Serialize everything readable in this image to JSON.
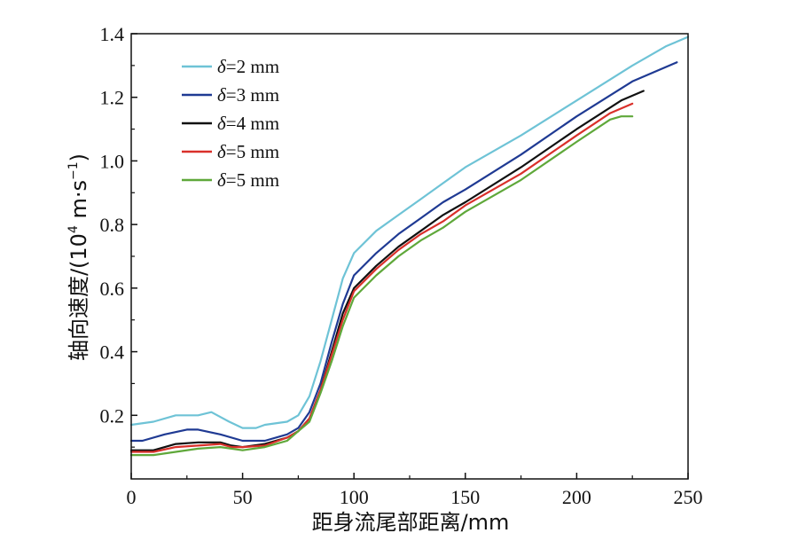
{
  "chart_data": {
    "type": "line",
    "xlabel": "距身流尾部距离/mm",
    "ylabel_main": "轴向速度/(10",
    "ylabel_exp1": "4",
    "ylabel_mid": " m·s",
    "ylabel_exp2": "−1",
    "ylabel_end": ")",
    "xlim": [
      0,
      250
    ],
    "ylim": [
      0,
      1.4
    ],
    "xticks": [
      "0",
      "50",
      "100",
      "150",
      "200",
      "250"
    ],
    "yticks": [
      "0.2",
      "0.4",
      "0.6",
      "0.8",
      "1.0",
      "1.2",
      "1.4"
    ],
    "legend_position": "top-left",
    "series": [
      {
        "name": "δ=2 mm",
        "symbol": "δ",
        "rest": "=2 mm",
        "color": "#6ec3d6",
        "points": [
          [
            0,
            0.17
          ],
          [
            10,
            0.18
          ],
          [
            20,
            0.2
          ],
          [
            30,
            0.2
          ],
          [
            36,
            0.21
          ],
          [
            44,
            0.18
          ],
          [
            50,
            0.16
          ],
          [
            56,
            0.16
          ],
          [
            60,
            0.17
          ],
          [
            70,
            0.18
          ],
          [
            75,
            0.2
          ],
          [
            80,
            0.26
          ],
          [
            85,
            0.37
          ],
          [
            90,
            0.5
          ],
          [
            95,
            0.63
          ],
          [
            100,
            0.71
          ],
          [
            110,
            0.78
          ],
          [
            120,
            0.83
          ],
          [
            130,
            0.88
          ],
          [
            140,
            0.93
          ],
          [
            150,
            0.98
          ],
          [
            175,
            1.08
          ],
          [
            200,
            1.19
          ],
          [
            225,
            1.3
          ],
          [
            240,
            1.36
          ],
          [
            250,
            1.39
          ]
        ]
      },
      {
        "name": "δ=3 mm",
        "symbol": "δ",
        "rest": "=3 mm",
        "color": "#1f3a93",
        "points": [
          [
            0,
            0.12
          ],
          [
            5,
            0.12
          ],
          [
            15,
            0.14
          ],
          [
            25,
            0.155
          ],
          [
            30,
            0.155
          ],
          [
            40,
            0.14
          ],
          [
            50,
            0.12
          ],
          [
            60,
            0.12
          ],
          [
            70,
            0.14
          ],
          [
            75,
            0.16
          ],
          [
            80,
            0.21
          ],
          [
            85,
            0.3
          ],
          [
            90,
            0.43
          ],
          [
            95,
            0.55
          ],
          [
            100,
            0.64
          ],
          [
            110,
            0.71
          ],
          [
            120,
            0.77
          ],
          [
            130,
            0.82
          ],
          [
            140,
            0.87
          ],
          [
            150,
            0.91
          ],
          [
            175,
            1.02
          ],
          [
            200,
            1.14
          ],
          [
            225,
            1.25
          ],
          [
            245,
            1.31
          ]
        ]
      },
      {
        "name": "δ=4 mm",
        "symbol": "δ",
        "rest": "=4 mm",
        "color": "#111111",
        "points": [
          [
            0,
            0.09
          ],
          [
            10,
            0.09
          ],
          [
            20,
            0.11
          ],
          [
            30,
            0.115
          ],
          [
            40,
            0.115
          ],
          [
            45,
            0.105
          ],
          [
            50,
            0.1
          ],
          [
            60,
            0.11
          ],
          [
            70,
            0.13
          ],
          [
            75,
            0.15
          ],
          [
            80,
            0.19
          ],
          [
            85,
            0.28
          ],
          [
            90,
            0.4
          ],
          [
            95,
            0.52
          ],
          [
            100,
            0.6
          ],
          [
            110,
            0.67
          ],
          [
            120,
            0.73
          ],
          [
            130,
            0.78
          ],
          [
            140,
            0.83
          ],
          [
            150,
            0.87
          ],
          [
            175,
            0.98
          ],
          [
            200,
            1.1
          ],
          [
            220,
            1.19
          ],
          [
            230,
            1.22
          ]
        ]
      },
      {
        "name": "δ=5 mm",
        "symbol": "δ",
        "rest": "=5 mm",
        "color": "#d9302a",
        "points": [
          [
            0,
            0.085
          ],
          [
            10,
            0.085
          ],
          [
            20,
            0.1
          ],
          [
            30,
            0.105
          ],
          [
            40,
            0.11
          ],
          [
            45,
            0.1
          ],
          [
            50,
            0.1
          ],
          [
            60,
            0.105
          ],
          [
            70,
            0.13
          ],
          [
            75,
            0.15
          ],
          [
            80,
            0.19
          ],
          [
            85,
            0.28
          ],
          [
            90,
            0.39
          ],
          [
            95,
            0.5
          ],
          [
            100,
            0.59
          ],
          [
            110,
            0.66
          ],
          [
            120,
            0.72
          ],
          [
            130,
            0.77
          ],
          [
            140,
            0.81
          ],
          [
            150,
            0.86
          ],
          [
            175,
            0.96
          ],
          [
            200,
            1.08
          ],
          [
            215,
            1.15
          ],
          [
            225,
            1.18
          ]
        ]
      },
      {
        "name": "δ=5 mm",
        "symbol": "δ",
        "rest": "=5 mm",
        "color": "#5fa83a",
        "points": [
          [
            0,
            0.075
          ],
          [
            10,
            0.075
          ],
          [
            20,
            0.085
          ],
          [
            30,
            0.095
          ],
          [
            40,
            0.1
          ],
          [
            50,
            0.09
          ],
          [
            60,
            0.1
          ],
          [
            70,
            0.12
          ],
          [
            75,
            0.15
          ],
          [
            80,
            0.18
          ],
          [
            85,
            0.27
          ],
          [
            90,
            0.37
          ],
          [
            95,
            0.48
          ],
          [
            100,
            0.57
          ],
          [
            110,
            0.64
          ],
          [
            120,
            0.7
          ],
          [
            130,
            0.75
          ],
          [
            140,
            0.79
          ],
          [
            150,
            0.84
          ],
          [
            175,
            0.94
          ],
          [
            200,
            1.06
          ],
          [
            215,
            1.13
          ],
          [
            220,
            1.14
          ],
          [
            225,
            1.14
          ]
        ]
      }
    ]
  }
}
